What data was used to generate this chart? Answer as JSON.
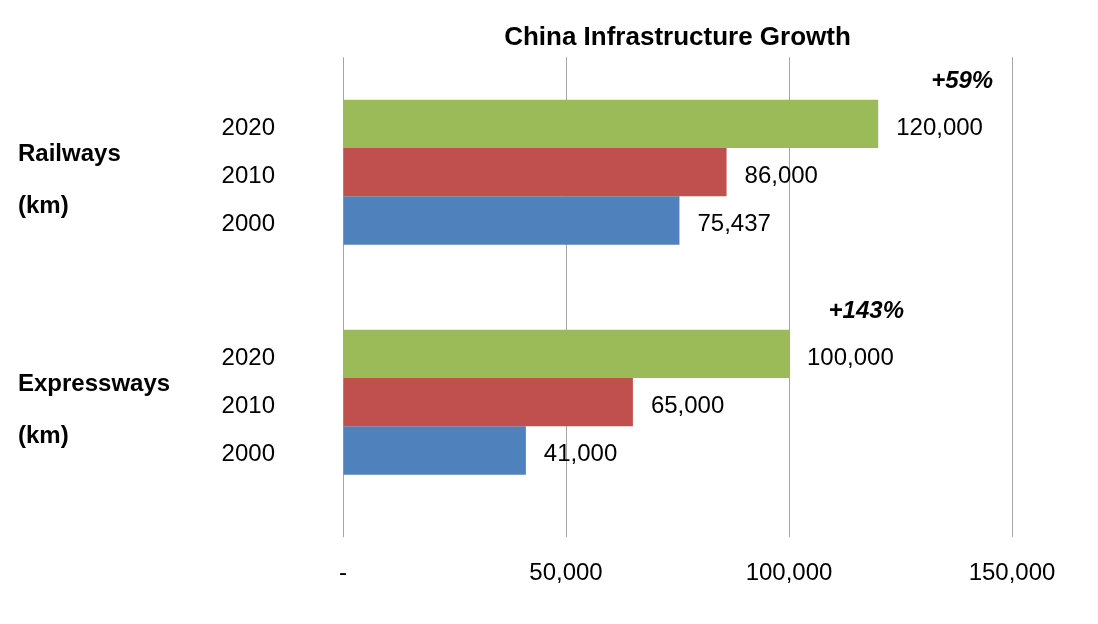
{
  "chart_data": {
    "type": "bar",
    "orientation": "horizontal",
    "title": "China Infrastructure Growth",
    "categories": [
      "Railways (km)",
      "Expressways (km)"
    ],
    "series": [
      {
        "name": "2020",
        "color": "#9bbb59",
        "values": [
          120000,
          100000
        ],
        "value_labels": [
          "120,000",
          "100,000"
        ]
      },
      {
        "name": "2010",
        "color": "#c0504d",
        "values": [
          86000,
          65000
        ],
        "value_labels": [
          "86,000",
          "65,000"
        ]
      },
      {
        "name": "2000",
        "color": "#4f81bd",
        "values": [
          75437,
          41000
        ],
        "value_labels": [
          "75,437",
          "41,000"
        ]
      }
    ],
    "xlim": [
      0,
      150000
    ],
    "xticks": [
      {
        "value": 0,
        "label": "-"
      },
      {
        "value": 50000,
        "label": "50,000"
      },
      {
        "value": 100000,
        "label": "100,000"
      },
      {
        "value": 150000,
        "label": "150,000"
      }
    ],
    "grid": "x",
    "legend": false,
    "annotations": [
      "+59%",
      "+143%"
    ]
  }
}
